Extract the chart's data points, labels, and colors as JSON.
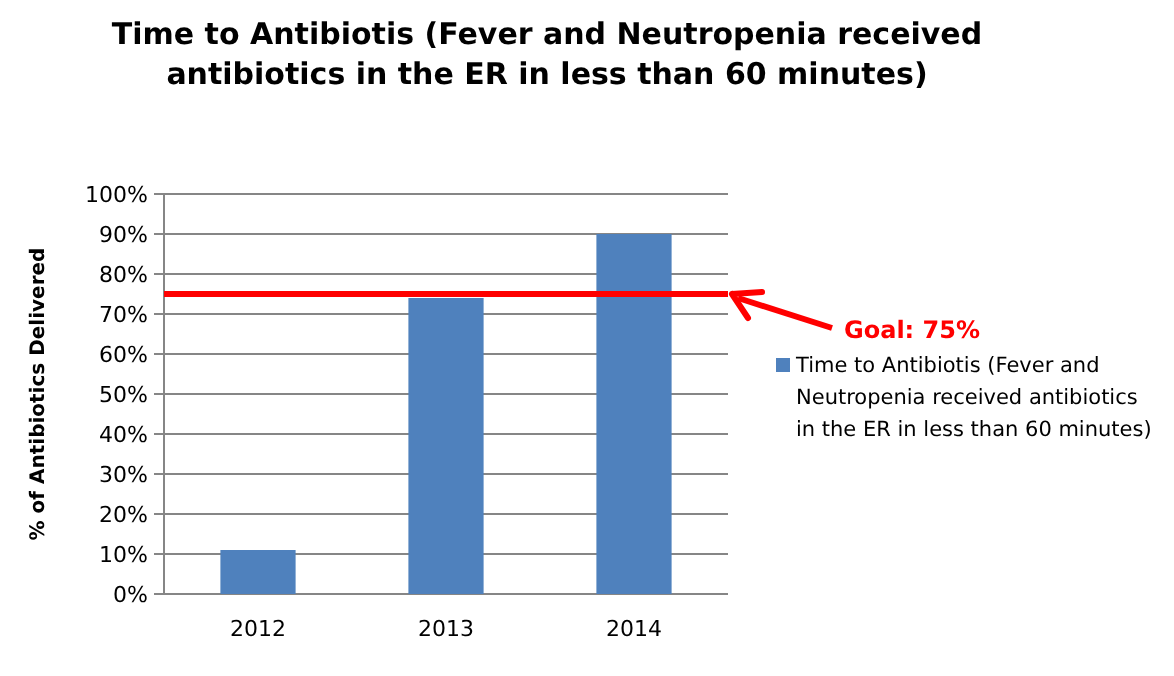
{
  "chart_data": {
    "type": "bar",
    "title": "Time to Antibiotis (Fever and Neutropenia received antibiotics in the ER in less than 60 minutes)",
    "ylabel": "% of Antibiotics  Delivered",
    "categories": [
      "2012",
      "2013",
      "2014"
    ],
    "series": [
      {
        "name": "Time to Antibiotis (Fever and Neutropenia received antibiotics in the ER in less than 60 minutes)",
        "color": "#4f81bd",
        "values": [
          11,
          74,
          90
        ]
      }
    ],
    "ylim": [
      0,
      100
    ],
    "yticks": [
      {
        "value": 0,
        "label": "0%"
      },
      {
        "value": 10,
        "label": "10%"
      },
      {
        "value": 20,
        "label": "20%"
      },
      {
        "value": 30,
        "label": "30%"
      },
      {
        "value": 40,
        "label": "40%"
      },
      {
        "value": 50,
        "label": "50%"
      },
      {
        "value": 60,
        "label": "60%"
      },
      {
        "value": 70,
        "label": "70%"
      },
      {
        "value": 80,
        "label": "80%"
      },
      {
        "value": 90,
        "label": "90%"
      },
      {
        "value": 100,
        "label": "100%"
      }
    ],
    "grid": "y",
    "legend": "right",
    "ref_lines": [
      {
        "axis": "y",
        "value": 75,
        "label": "Goal: 75%",
        "color": "#ff0000"
      }
    ]
  }
}
